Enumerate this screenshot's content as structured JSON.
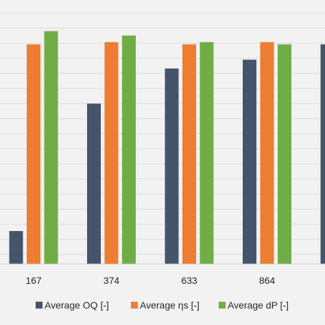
{
  "chart_data": {
    "type": "bar",
    "categories": [
      "167",
      "374",
      "633",
      "864",
      ""
    ],
    "series": [
      {
        "name": "Average OQ [-]",
        "color": "#44546a",
        "values": [
          0.15,
          0.73,
          0.89,
          0.93,
          1.0
        ]
      },
      {
        "name": "Average ηs [-]",
        "color": "#ed7d31",
        "values": [
          1.0,
          1.01,
          1.0,
          1.01,
          null
        ]
      },
      {
        "name": "Average dP [-]",
        "color": "#70ad47",
        "values": [
          1.06,
          1.04,
          1.01,
          1.0,
          null
        ]
      }
    ],
    "ylim": [
      0,
      1.18
    ],
    "grid": true,
    "legend_position": "bottom"
  }
}
